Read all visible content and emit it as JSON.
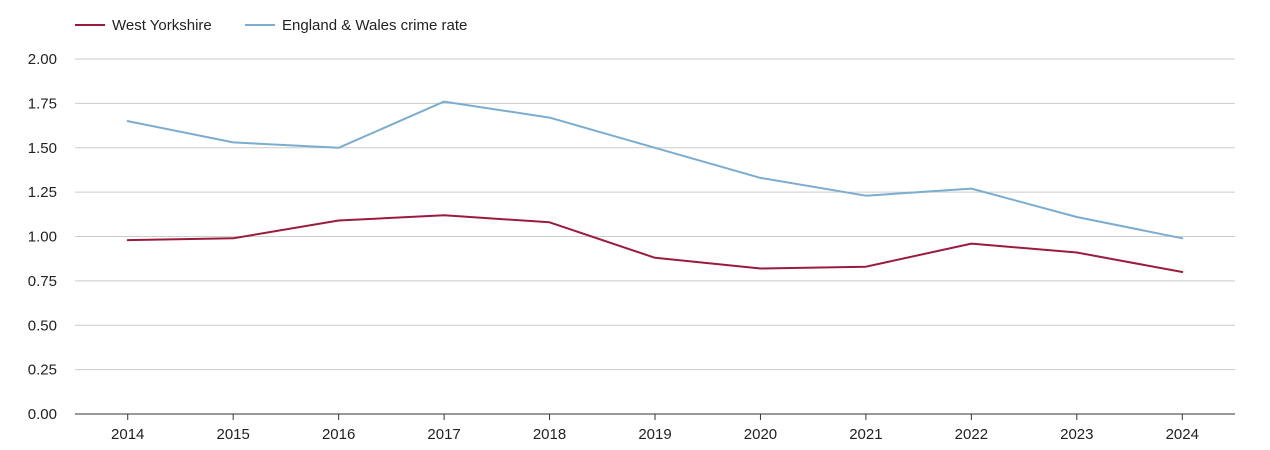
{
  "chart_data": {
    "type": "line",
    "title": "",
    "xlabel": "",
    "ylabel": "",
    "categories": [
      "2014",
      "2015",
      "2016",
      "2017",
      "2018",
      "2019",
      "2020",
      "2021",
      "2022",
      "2023",
      "2024"
    ],
    "y_ticks": [
      "0.00",
      "0.25",
      "0.50",
      "0.75",
      "1.00",
      "1.25",
      "1.50",
      "1.75",
      "2.00"
    ],
    "ylim": [
      0,
      2
    ],
    "grid": true,
    "legend_position": "top-left",
    "series": [
      {
        "name": "West Yorkshire",
        "color": "#9b1b3f",
        "values": [
          0.98,
          0.99,
          1.09,
          1.12,
          1.08,
          0.88,
          0.82,
          0.83,
          0.96,
          0.91,
          0.8
        ]
      },
      {
        "name": "England & Wales crime rate",
        "color": "#7aadcf",
        "values": [
          1.65,
          1.53,
          1.5,
          1.76,
          1.67,
          1.5,
          1.33,
          1.23,
          1.27,
          1.11,
          0.99
        ]
      }
    ]
  }
}
